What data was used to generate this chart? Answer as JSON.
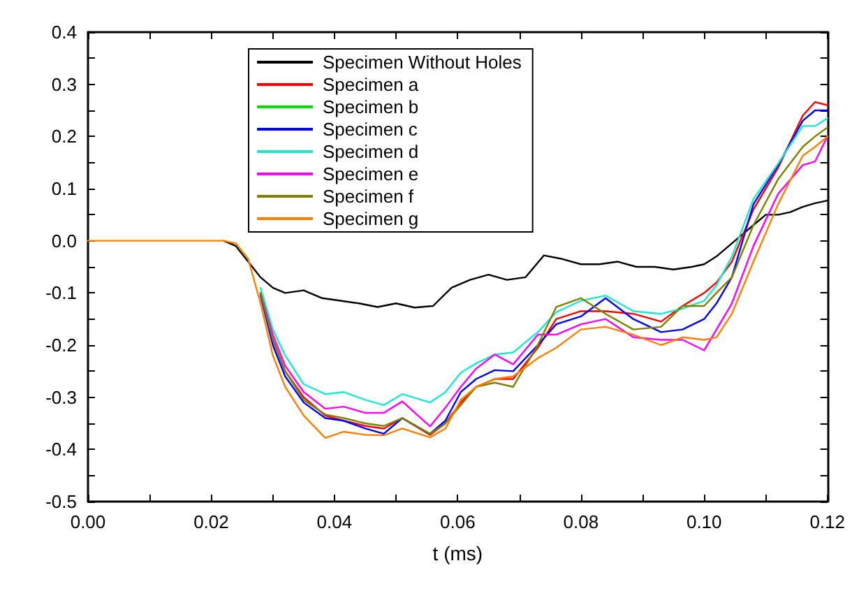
{
  "chart_data": {
    "type": "line",
    "xlabel": "t (ms)",
    "x": [
      0,
      0.02,
      0.022,
      0.024,
      0.026,
      0.028,
      0.03,
      0.032,
      0.035,
      0.0385,
      0.0415,
      0.045,
      0.048,
      0.051,
      0.0555,
      0.058,
      0.0605,
      0.063,
      0.066,
      0.069,
      0.073,
      0.076,
      0.08,
      0.084,
      0.0885,
      0.093,
      0.0965,
      0.1,
      0.102,
      0.1045,
      0.108,
      0.112,
      0.116,
      0.118,
      0.12
    ],
    "series": [
      {
        "name": "Specimen Without Holes",
        "color": "#000000",
        "x": [
          0.022,
          0.024,
          0.026,
          0.028,
          0.03,
          0.032,
          0.035,
          0.038,
          0.041,
          0.044,
          0.047,
          0.05,
          0.053,
          0.056,
          0.059,
          0.062,
          0.065,
          0.068,
          0.071,
          0.074,
          0.077,
          0.08,
          0.083,
          0.086,
          0.089,
          0.092,
          0.095,
          0.098,
          0.1,
          0.102,
          0.104,
          0.106,
          0.108,
          0.11,
          0.112,
          0.114,
          0.116,
          0.118,
          0.12
        ],
        "values": [
          0,
          -0.01,
          -0.04,
          -0.07,
          -0.09,
          -0.1,
          -0.095,
          -0.11,
          -0.115,
          -0.12,
          -0.127,
          -0.12,
          -0.128,
          -0.125,
          -0.09,
          -0.075,
          -0.065,
          -0.075,
          -0.07,
          -0.028,
          -0.035,
          -0.045,
          -0.045,
          -0.04,
          -0.05,
          -0.05,
          -0.055,
          -0.05,
          -0.045,
          -0.03,
          -0.01,
          0.01,
          0.03,
          0.05,
          0.05,
          0.055,
          0.065,
          0.072,
          0.077
        ]
      },
      {
        "name": "Specimen a",
        "color": "#ff0000",
        "values": [
          null,
          null,
          null,
          null,
          null,
          -0.1,
          -0.19,
          -0.25,
          -0.3,
          -0.335,
          -0.345,
          -0.355,
          -0.36,
          -0.34,
          -0.372,
          -0.35,
          -0.31,
          -0.28,
          -0.265,
          -0.265,
          -0.205,
          -0.15,
          -0.135,
          -0.135,
          -0.14,
          -0.155,
          -0.125,
          -0.1,
          -0.08,
          -0.04,
          0.06,
          0.14,
          0.24,
          0.266,
          0.26
        ]
      },
      {
        "name": "Specimen b",
        "color": "#00e000",
        "values": [
          null,
          null,
          null,
          null,
          null,
          null,
          null,
          null,
          null,
          null,
          null,
          null,
          null,
          null,
          null,
          null,
          null,
          null,
          null,
          null,
          null,
          null,
          null,
          null,
          null,
          null,
          null,
          null,
          null,
          null,
          null,
          null,
          null,
          null,
          null
        ]
      },
      {
        "name": "Specimen c",
        "color": "#0000ff",
        "values": [
          null,
          null,
          null,
          null,
          null,
          -0.105,
          -0.2,
          -0.26,
          -0.31,
          -0.34,
          -0.345,
          -0.36,
          -0.37,
          -0.34,
          -0.37,
          -0.345,
          -0.29,
          -0.265,
          -0.248,
          -0.25,
          -0.2,
          -0.16,
          -0.145,
          -0.11,
          -0.15,
          -0.175,
          -0.17,
          -0.15,
          -0.12,
          -0.07,
          0.07,
          0.145,
          0.23,
          0.25,
          0.25
        ]
      },
      {
        "name": "Specimen d",
        "color": "#1ee8d0",
        "values": [
          null,
          null,
          null,
          null,
          null,
          -0.09,
          -0.17,
          -0.22,
          -0.275,
          -0.294,
          -0.29,
          -0.305,
          -0.315,
          -0.294,
          -0.31,
          -0.29,
          -0.253,
          -0.235,
          -0.218,
          -0.214,
          -0.175,
          -0.137,
          -0.115,
          -0.105,
          -0.135,
          -0.14,
          -0.13,
          -0.115,
          -0.085,
          -0.03,
          0.08,
          0.148,
          0.22,
          0.22,
          0.235
        ]
      },
      {
        "name": "Specimen e",
        "color": "#ff00ff",
        "values": [
          null,
          null,
          null,
          null,
          null,
          -0.1,
          -0.18,
          -0.24,
          -0.29,
          -0.322,
          -0.318,
          -0.33,
          -0.33,
          -0.308,
          -0.356,
          -0.32,
          -0.28,
          -0.245,
          -0.218,
          -0.237,
          -0.18,
          -0.18,
          -0.16,
          -0.15,
          -0.185,
          -0.19,
          -0.19,
          -0.21,
          -0.17,
          -0.12,
          -0.01,
          0.09,
          0.145,
          0.152,
          0.2
        ]
      },
      {
        "name": "Specimen f",
        "color": "#808000",
        "values": [
          null,
          null,
          null,
          null,
          null,
          -0.1,
          -0.19,
          -0.25,
          -0.305,
          -0.333,
          -0.34,
          -0.35,
          -0.355,
          -0.34,
          -0.37,
          -0.35,
          -0.315,
          -0.28,
          -0.272,
          -0.28,
          -0.2,
          -0.127,
          -0.11,
          -0.14,
          -0.17,
          -0.165,
          -0.125,
          -0.125,
          -0.1,
          -0.07,
          0.03,
          0.118,
          0.18,
          0.2,
          0.217
        ]
      },
      {
        "name": "Specimen g",
        "color": "#ff8000",
        "values": [
          0,
          0,
          0,
          -0.005,
          -0.035,
          -0.12,
          -0.22,
          -0.28,
          -0.335,
          -0.378,
          -0.366,
          -0.372,
          -0.373,
          -0.36,
          -0.377,
          -0.36,
          -0.305,
          -0.28,
          -0.265,
          -0.26,
          -0.225,
          -0.205,
          -0.17,
          -0.165,
          -0.18,
          -0.2,
          -0.185,
          -0.19,
          -0.185,
          -0.14,
          -0.04,
          0.07,
          0.163,
          0.18,
          0.2
        ]
      }
    ],
    "xlim": [
      0,
      0.12
    ],
    "xticks": [
      {
        "value": 0,
        "label": "0.00"
      },
      0.02,
      0.04,
      0.06,
      0.08,
      {
        "value": 0.1,
        "label": "0.10"
      },
      0.12
    ],
    "ylim": [
      -0.5,
      0.4
    ],
    "yticks": [
      -0.5,
      -0.4,
      -0.3,
      -0.2,
      -0.1,
      {
        "value": 0,
        "label": "0.0"
      },
      0.1,
      0.2,
      0.3,
      0.4
    ],
    "grid": false,
    "legend": "top left",
    "marker": "none",
    "line_style": "solid"
  }
}
